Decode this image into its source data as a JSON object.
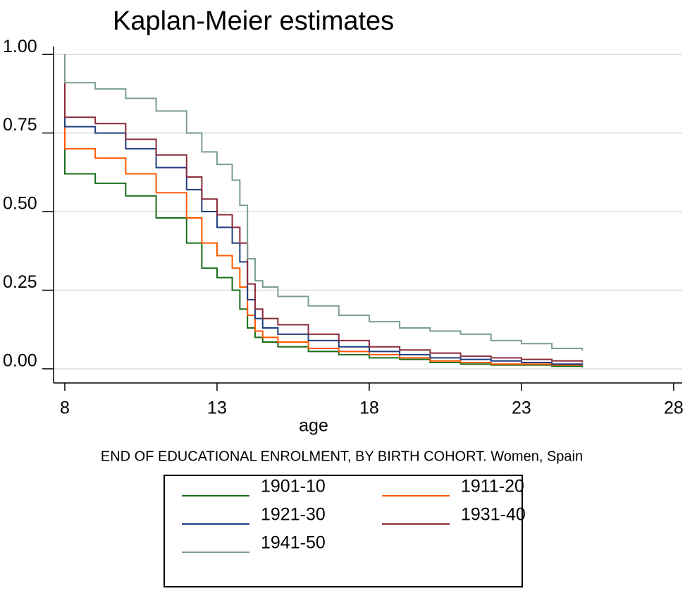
{
  "chart_data": {
    "type": "line",
    "step": "post",
    "title": "Kaplan-Meier estimates",
    "xlabel": "age",
    "note": "END OF EDUCATIONAL ENROLMENT, BY BIRTH COHORT. Women, Spain",
    "xlim": [
      7.63,
      28.28
    ],
    "xticks": [
      8,
      13,
      18,
      23,
      28
    ],
    "ylim": [
      -0.045,
      1.025
    ],
    "yticks": [
      {
        "value": 0,
        "label": "0.00"
      },
      {
        "value": 0.25,
        "label": "0.25"
      },
      {
        "value": 0.5,
        "label": "0.50"
      },
      {
        "value": 0.75,
        "label": "0.75"
      },
      {
        "value": 1,
        "label": "1.00"
      }
    ],
    "grid": true,
    "legend_position": "bottom",
    "series": [
      {
        "name": "1901-10",
        "color": "#1a6e1a",
        "x": [
          8,
          8,
          9,
          10,
          11,
          12,
          12.5,
          13,
          13.5,
          13.75,
          14,
          14.25,
          14.5,
          15,
          16,
          17,
          18,
          19,
          20,
          21,
          22,
          24,
          25
        ],
        "values": [
          1,
          0.62,
          0.59,
          0.55,
          0.48,
          0.4,
          0.32,
          0.29,
          0.25,
          0.19,
          0.13,
          0.1,
          0.085,
          0.07,
          0.055,
          0.045,
          0.035,
          0.03,
          0.02,
          0.015,
          0.012,
          0.008,
          0.005
        ]
      },
      {
        "name": "1911-20",
        "color": "#ff5a00",
        "x": [
          8,
          8,
          9,
          10,
          11,
          12,
          12.5,
          13,
          13.5,
          13.75,
          14,
          14.25,
          14.5,
          15,
          16,
          17,
          18,
          19,
          20,
          21,
          22,
          24,
          25
        ],
        "values": [
          1,
          0.7,
          0.67,
          0.62,
          0.56,
          0.48,
          0.4,
          0.36,
          0.32,
          0.26,
          0.17,
          0.12,
          0.1,
          0.085,
          0.065,
          0.055,
          0.045,
          0.035,
          0.025,
          0.02,
          0.015,
          0.012,
          0.012
        ]
      },
      {
        "name": "1921-30",
        "color": "#1f3f7f",
        "x": [
          8,
          8,
          9,
          10,
          11,
          12,
          12.5,
          13,
          13.5,
          13.75,
          14,
          14.25,
          14.5,
          15,
          16,
          17,
          18,
          19,
          20,
          21,
          22,
          23,
          24,
          25
        ],
        "values": [
          1,
          0.77,
          0.75,
          0.7,
          0.64,
          0.57,
          0.5,
          0.45,
          0.4,
          0.34,
          0.22,
          0.16,
          0.13,
          0.11,
          0.09,
          0.07,
          0.055,
          0.045,
          0.035,
          0.03,
          0.025,
          0.02,
          0.015,
          0.012
        ]
      },
      {
        "name": "1931-40",
        "color": "#8b2a3a",
        "x": [
          8,
          8,
          9,
          10,
          11,
          12,
          12.5,
          13,
          13.5,
          13.75,
          14,
          14.25,
          14.5,
          15,
          16,
          17,
          18,
          19,
          20,
          21,
          22,
          23,
          24,
          25
        ],
        "values": [
          1,
          0.8,
          0.78,
          0.73,
          0.68,
          0.61,
          0.54,
          0.49,
          0.45,
          0.4,
          0.27,
          0.19,
          0.16,
          0.14,
          0.11,
          0.09,
          0.07,
          0.06,
          0.05,
          0.04,
          0.035,
          0.03,
          0.025,
          0.02
        ]
      },
      {
        "name": "1941-50",
        "color": "#7a9e8e",
        "x": [
          8,
          8,
          9,
          10,
          11,
          12,
          12.5,
          13,
          13.5,
          13.75,
          14,
          14.25,
          14.5,
          15,
          16,
          17,
          18,
          19,
          20,
          21,
          22,
          23,
          24,
          25
        ],
        "values": [
          1,
          0.91,
          0.89,
          0.86,
          0.82,
          0.75,
          0.69,
          0.65,
          0.6,
          0.52,
          0.35,
          0.28,
          0.26,
          0.23,
          0.2,
          0.17,
          0.15,
          0.13,
          0.12,
          0.11,
          0.09,
          0.08,
          0.065,
          0.058
        ]
      }
    ]
  }
}
